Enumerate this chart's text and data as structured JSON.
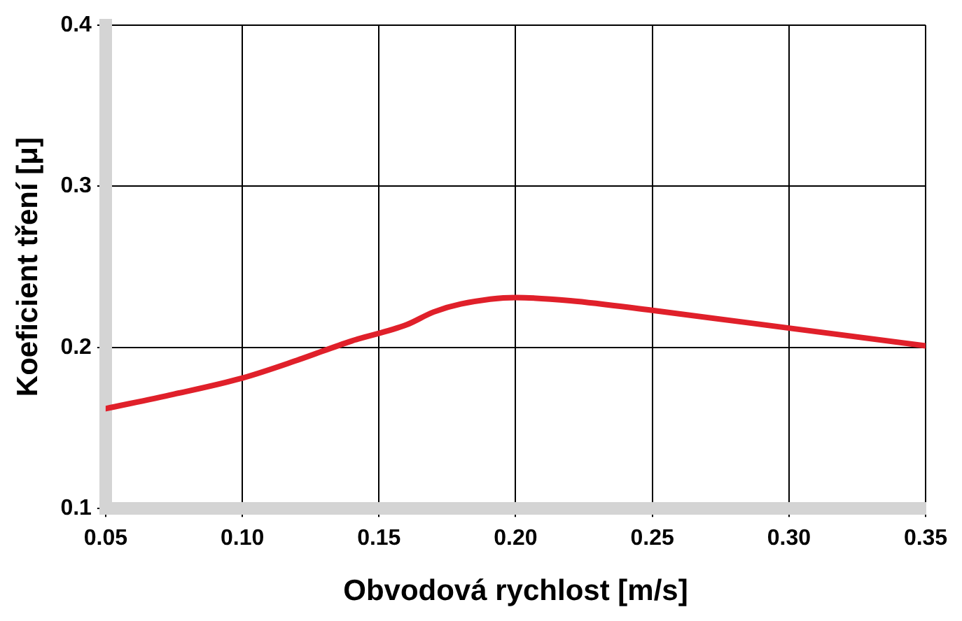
{
  "chart_data": {
    "type": "line",
    "xlabel": "Obvodová rychlost [m/s]",
    "ylabel": "Koeficient tření [μ]",
    "x": [
      0.05,
      0.075,
      0.1,
      0.12,
      0.14,
      0.16,
      0.17,
      0.18,
      0.2,
      0.22,
      0.25,
      0.3,
      0.35
    ],
    "series": [
      {
        "color": "#e0202a",
        "values": [
          0.162,
          0.171,
          0.181,
          0.192,
          0.204,
          0.214,
          0.222,
          0.227,
          0.231,
          0.229,
          0.223,
          0.212,
          0.201
        ]
      }
    ],
    "xlim": [
      0.05,
      0.35
    ],
    "xticks": [
      {
        "value": 0.05,
        "label": "0.05"
      },
      {
        "value": 0.1,
        "label": "0.10"
      },
      {
        "value": 0.15,
        "label": "0.15"
      },
      {
        "value": 0.2,
        "label": "0.20"
      },
      {
        "value": 0.25,
        "label": "0.25"
      },
      {
        "value": 0.3,
        "label": "0.30"
      },
      {
        "value": 0.35,
        "label": "0.35"
      }
    ],
    "ylim": [
      0.1,
      0.4
    ],
    "yticks": [
      0.1,
      0.2,
      0.3,
      0.4
    ],
    "grid": true,
    "legend": false,
    "marker": "none",
    "line_style": "solid"
  }
}
